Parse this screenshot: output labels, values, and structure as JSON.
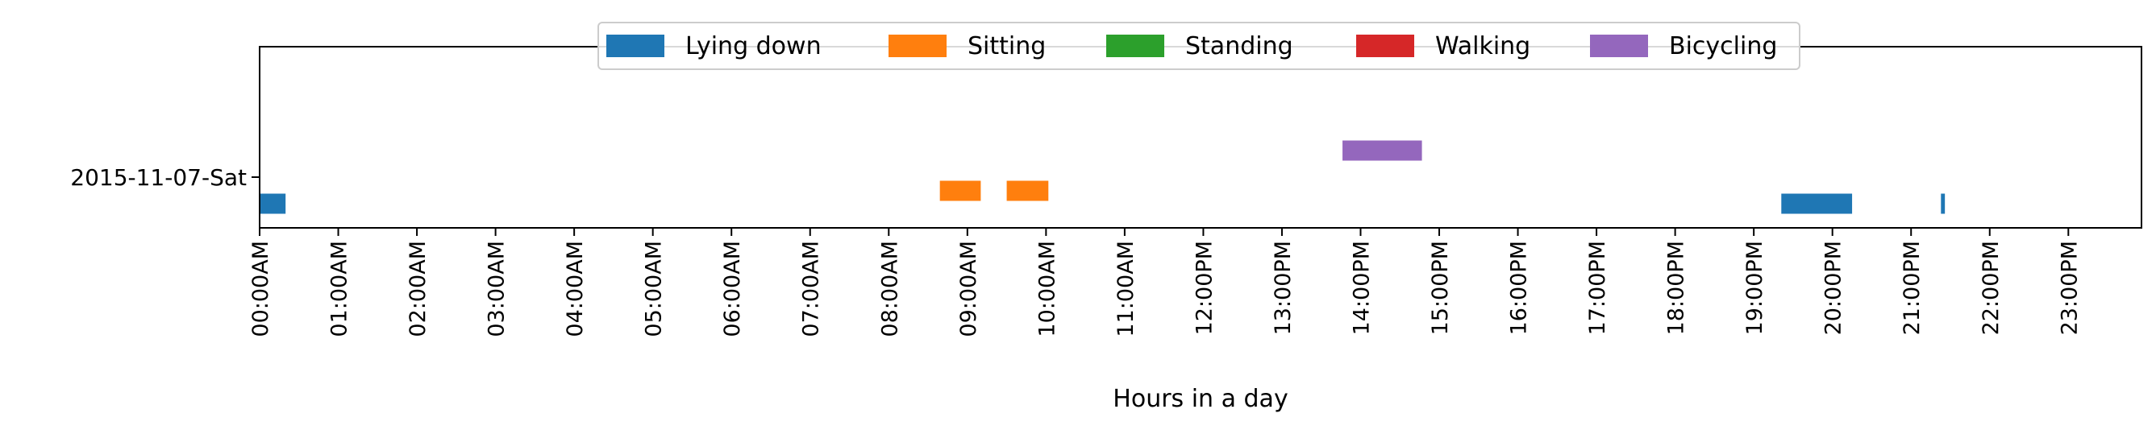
{
  "chart_data": {
    "type": "timeline",
    "title": "",
    "xlabel": "Hours in a day",
    "ylabel": "",
    "xlim": [
      0,
      24
    ],
    "grid": false,
    "legend_position": "top-center",
    "y_categories": [
      "2015-11-07-Sat"
    ],
    "x_ticks": [
      {
        "value": 0,
        "label": "00:00AM"
      },
      {
        "value": 1,
        "label": "01:00AM"
      },
      {
        "value": 2,
        "label": "02:00AM"
      },
      {
        "value": 3,
        "label": "03:00AM"
      },
      {
        "value": 4,
        "label": "04:00AM"
      },
      {
        "value": 5,
        "label": "05:00AM"
      },
      {
        "value": 6,
        "label": "06:00AM"
      },
      {
        "value": 7,
        "label": "07:00AM"
      },
      {
        "value": 8,
        "label": "08:00AM"
      },
      {
        "value": 9,
        "label": "09:00AM"
      },
      {
        "value": 10,
        "label": "10:00AM"
      },
      {
        "value": 11,
        "label": "11:00AM"
      },
      {
        "value": 12,
        "label": "12:00PM"
      },
      {
        "value": 13,
        "label": "13:00PM"
      },
      {
        "value": 14,
        "label": "14:00PM"
      },
      {
        "value": 15,
        "label": "15:00PM"
      },
      {
        "value": 16,
        "label": "16:00PM"
      },
      {
        "value": 17,
        "label": "17:00PM"
      },
      {
        "value": 18,
        "label": "18:00PM"
      },
      {
        "value": 19,
        "label": "19:00PM"
      },
      {
        "value": 20,
        "label": "20:00PM"
      },
      {
        "value": 21,
        "label": "21:00PM"
      },
      {
        "value": 22,
        "label": "22:00PM"
      },
      {
        "value": 23,
        "label": "23:00PM"
      }
    ],
    "series": [
      {
        "name": "Lying down",
        "color": "#1f77b4",
        "intervals": [
          {
            "start": 0.0,
            "end": 0.33
          },
          {
            "start": 19.35,
            "end": 20.25
          },
          {
            "start": 21.38,
            "end": 21.43
          }
        ]
      },
      {
        "name": "Sitting",
        "color": "#ff7f0e",
        "intervals": [
          {
            "start": 8.65,
            "end": 9.17
          },
          {
            "start": 9.5,
            "end": 10.03
          }
        ]
      },
      {
        "name": "Standing",
        "color": "#2ca02c",
        "intervals": []
      },
      {
        "name": "Walking",
        "color": "#d62728",
        "intervals": []
      },
      {
        "name": "Bicycling",
        "color": "#9467bd",
        "intervals": [
          {
            "start": 13.77,
            "end": 14.78
          }
        ]
      }
    ]
  }
}
